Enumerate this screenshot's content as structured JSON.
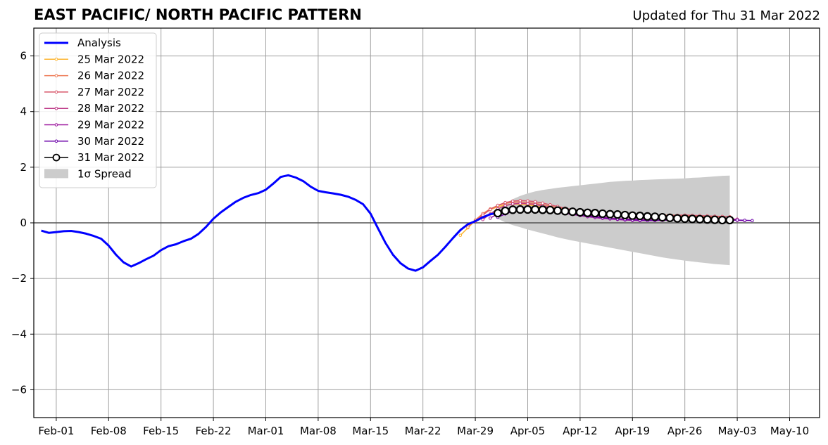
{
  "header": {
    "title": "EAST PACIFIC/ NORTH PACIFIC PATTERN",
    "updated": "Updated for Thu 31 Mar 2022"
  },
  "chart_data": {
    "type": "line",
    "title": "EAST PACIFIC/ NORTH PACIFIC PATTERN",
    "xlabel": "",
    "ylabel": "",
    "x_range": [
      "2022-01-29",
      "2022-05-14"
    ],
    "ylim": [
      -7,
      7
    ],
    "grid": true,
    "legend_position": "upper-left",
    "x_ticks": [
      "Feb-01",
      "Feb-08",
      "Feb-15",
      "Feb-22",
      "Mar-01",
      "Mar-08",
      "Mar-15",
      "Mar-22",
      "Mar-29",
      "Apr-05",
      "Apr-12",
      "Apr-19",
      "Apr-26",
      "May-03",
      "May-10"
    ],
    "y_ticks": [
      -6,
      -4,
      -2,
      0,
      2,
      4,
      6
    ],
    "y_tick_labels": [
      "−6",
      "−4",
      "−2",
      "0",
      "2",
      "4",
      "6"
    ],
    "analysis": {
      "name": "Analysis",
      "color": "#0000ff",
      "points": [
        [
          "2022-01-30",
          -0.28
        ],
        [
          "2022-01-31",
          -0.36
        ],
        [
          "2022-02-01",
          -0.33
        ],
        [
          "2022-02-02",
          -0.3
        ],
        [
          "2022-02-03",
          -0.29
        ],
        [
          "2022-02-04",
          -0.33
        ],
        [
          "2022-02-05",
          -0.39
        ],
        [
          "2022-02-06",
          -0.47
        ],
        [
          "2022-02-07",
          -0.57
        ],
        [
          "2022-02-08",
          -0.82
        ],
        [
          "2022-02-09",
          -1.15
        ],
        [
          "2022-02-10",
          -1.42
        ],
        [
          "2022-02-11",
          -1.57
        ],
        [
          "2022-02-12",
          -1.45
        ],
        [
          "2022-02-13",
          -1.31
        ],
        [
          "2022-02-14",
          -1.18
        ],
        [
          "2022-02-15",
          -0.98
        ],
        [
          "2022-02-16",
          -0.84
        ],
        [
          "2022-02-17",
          -0.77
        ],
        [
          "2022-02-18",
          -0.66
        ],
        [
          "2022-02-19",
          -0.57
        ],
        [
          "2022-02-20",
          -0.4
        ],
        [
          "2022-02-21",
          -0.15
        ],
        [
          "2022-02-22",
          0.15
        ],
        [
          "2022-02-23",
          0.38
        ],
        [
          "2022-02-24",
          0.57
        ],
        [
          "2022-02-25",
          0.76
        ],
        [
          "2022-02-26",
          0.9
        ],
        [
          "2022-02-27",
          1.0
        ],
        [
          "2022-02-28",
          1.07
        ],
        [
          "2022-03-01",
          1.19
        ],
        [
          "2022-03-02",
          1.41
        ],
        [
          "2022-03-03",
          1.65
        ],
        [
          "2022-03-04",
          1.71
        ],
        [
          "2022-03-05",
          1.63
        ],
        [
          "2022-03-06",
          1.5
        ],
        [
          "2022-03-07",
          1.3
        ],
        [
          "2022-03-08",
          1.15
        ],
        [
          "2022-03-09",
          1.1
        ],
        [
          "2022-03-10",
          1.06
        ],
        [
          "2022-03-11",
          1.01
        ],
        [
          "2022-03-12",
          0.94
        ],
        [
          "2022-03-13",
          0.83
        ],
        [
          "2022-03-14",
          0.67
        ],
        [
          "2022-03-15",
          0.33
        ],
        [
          "2022-03-16",
          -0.2
        ],
        [
          "2022-03-17",
          -0.72
        ],
        [
          "2022-03-18",
          -1.15
        ],
        [
          "2022-03-19",
          -1.45
        ],
        [
          "2022-03-20",
          -1.64
        ],
        [
          "2022-03-21",
          -1.72
        ],
        [
          "2022-03-22",
          -1.6
        ],
        [
          "2022-03-23",
          -1.37
        ],
        [
          "2022-03-24",
          -1.15
        ],
        [
          "2022-03-25",
          -0.86
        ],
        [
          "2022-03-26",
          -0.55
        ],
        [
          "2022-03-27",
          -0.26
        ],
        [
          "2022-03-28",
          -0.05
        ],
        [
          "2022-03-29",
          0.06
        ],
        [
          "2022-03-30",
          0.2
        ],
        [
          "2022-03-31",
          0.31
        ],
        [
          "2022-04-01",
          0.35
        ]
      ]
    },
    "forecasts": [
      {
        "name": "25 Mar 2022",
        "color": "#fdb42f",
        "start": "2022-03-27",
        "values": [
          -0.45,
          -0.18,
          0.08,
          0.3,
          0.47,
          0.58,
          0.64,
          0.67,
          0.67,
          0.65,
          0.61,
          0.56,
          0.51,
          0.46,
          0.41,
          0.37,
          0.34,
          0.31,
          0.28,
          0.26,
          0.25,
          0.24,
          0.24,
          0.24,
          0.25,
          0.26,
          0.26,
          0.27,
          0.26,
          0.25,
          0.24,
          0.23,
          0.22,
          0.21,
          0.2
        ]
      },
      {
        "name": "26 Mar 2022",
        "color": "#ed7953",
        "start": "2022-03-28",
        "values": [
          -0.15,
          0.1,
          0.33,
          0.5,
          0.62,
          0.7,
          0.74,
          0.75,
          0.73,
          0.7,
          0.65,
          0.6,
          0.55,
          0.5,
          0.45,
          0.4,
          0.36,
          0.32,
          0.29,
          0.27,
          0.25,
          0.24,
          0.24,
          0.24,
          0.25,
          0.26,
          0.27,
          0.28,
          0.27,
          0.26,
          0.25,
          0.24,
          0.23,
          0.22,
          0.21
        ]
      },
      {
        "name": "27 Mar 2022",
        "color": "#d8576b",
        "start": "2022-03-29",
        "values": [
          0.06,
          0.28,
          0.48,
          0.63,
          0.73,
          0.78,
          0.8,
          0.79,
          0.76,
          0.71,
          0.65,
          0.59,
          0.53,
          0.47,
          0.42,
          0.37,
          0.33,
          0.3,
          0.27,
          0.25,
          0.24,
          0.23,
          0.23,
          0.23,
          0.24,
          0.25,
          0.26,
          0.27,
          0.28,
          0.27,
          0.26,
          0.25,
          0.24,
          0.23,
          0.22
        ]
      },
      {
        "name": "28 Mar 2022",
        "color": "#bd3786",
        "start": "2022-03-30",
        "values": [
          0.12,
          0.32,
          0.5,
          0.62,
          0.68,
          0.7,
          0.69,
          0.66,
          0.61,
          0.55,
          0.49,
          0.43,
          0.37,
          0.32,
          0.27,
          0.23,
          0.2,
          0.17,
          0.15,
          0.14,
          0.13,
          0.13,
          0.13,
          0.14,
          0.15,
          0.16,
          0.17,
          0.18,
          0.18,
          0.18,
          0.17,
          0.16,
          0.15,
          0.14,
          0.13
        ]
      },
      {
        "name": "29 Mar 2022",
        "color": "#9c179e",
        "start": "2022-03-31",
        "values": [
          0.17,
          0.33,
          0.45,
          0.53,
          0.56,
          0.56,
          0.53,
          0.49,
          0.44,
          0.39,
          0.34,
          0.3,
          0.26,
          0.22,
          0.19,
          0.16,
          0.14,
          0.12,
          0.1,
          0.09,
          0.08,
          0.08,
          0.08,
          0.09,
          0.1,
          0.11,
          0.12,
          0.13,
          0.13,
          0.13,
          0.12,
          0.11,
          0.1,
          0.09,
          0.08
        ]
      },
      {
        "name": "30 Mar 2022",
        "color": "#6a00a8",
        "start": "2022-04-01",
        "values": [
          0.2,
          0.32,
          0.41,
          0.47,
          0.5,
          0.5,
          0.48,
          0.45,
          0.41,
          0.37,
          0.33,
          0.29,
          0.25,
          0.22,
          0.19,
          0.16,
          0.14,
          0.12,
          0.11,
          0.1,
          0.09,
          0.09,
          0.1,
          0.1,
          0.11,
          0.12,
          0.12,
          0.13,
          0.13,
          0.12,
          0.12,
          0.11,
          0.1,
          0.09,
          0.08
        ]
      },
      {
        "name": "31 Mar 2022",
        "color": "#000000",
        "start": "2022-04-01",
        "values": [
          0.35,
          0.43,
          0.47,
          0.48,
          0.48,
          0.48,
          0.47,
          0.46,
          0.44,
          0.42,
          0.4,
          0.38,
          0.36,
          0.35,
          0.33,
          0.31,
          0.3,
          0.28,
          0.26,
          0.25,
          0.23,
          0.22,
          0.2,
          0.18,
          0.16,
          0.15,
          0.14,
          0.13,
          0.12,
          0.11,
          0.1,
          0.1
        ]
      }
    ],
    "spread": {
      "name": "1σ Spread",
      "color": "#cccccc",
      "start": "2022-04-01",
      "upper": [
        0.5,
        0.7,
        0.85,
        0.97,
        1.06,
        1.13,
        1.18,
        1.22,
        1.26,
        1.29,
        1.32,
        1.35,
        1.38,
        1.41,
        1.44,
        1.47,
        1.49,
        1.51,
        1.52,
        1.54,
        1.55,
        1.56,
        1.57,
        1.58,
        1.59,
        1.6,
        1.62,
        1.63,
        1.65,
        1.67,
        1.69,
        1.7
      ],
      "lower": [
        0.15,
        0.02,
        -0.08,
        -0.16,
        -0.24,
        -0.31,
        -0.38,
        -0.45,
        -0.52,
        -0.58,
        -0.64,
        -0.69,
        -0.74,
        -0.79,
        -0.84,
        -0.89,
        -0.94,
        -0.99,
        -1.04,
        -1.09,
        -1.14,
        -1.19,
        -1.24,
        -1.28,
        -1.32,
        -1.36,
        -1.39,
        -1.42,
        -1.45,
        -1.48,
        -1.5,
        -1.52
      ]
    }
  }
}
